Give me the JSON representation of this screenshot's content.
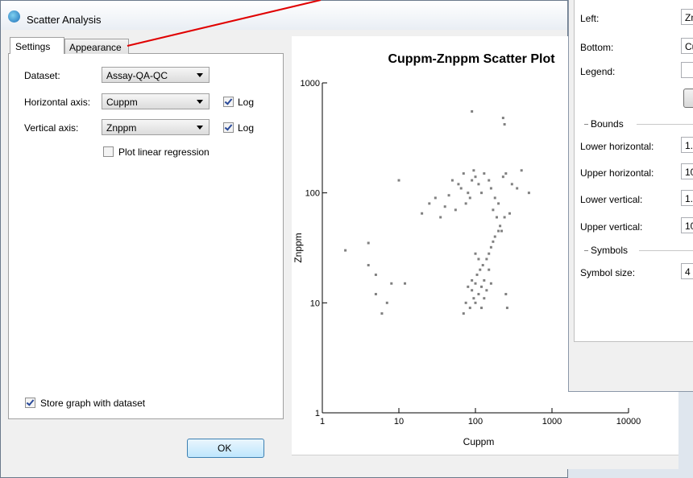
{
  "window": {
    "title": "Scatter Analysis"
  },
  "tabs": [
    "Settings",
    "Appearance"
  ],
  "settings": {
    "dataset": {
      "label": "Dataset:",
      "value": "Assay-QA-QC"
    },
    "horizontal_axis": {
      "label": "Horizontal axis:",
      "value": "Cuppm",
      "log_label": "Log",
      "log": true
    },
    "vertical_axis": {
      "label": "Vertical axis:",
      "value": "Znppm",
      "log_label": "Log",
      "log": true
    },
    "regression": {
      "label": "Plot linear regression",
      "checked": false
    },
    "store": {
      "label": "Store graph with dataset",
      "checked": true
    },
    "ok": "OK"
  },
  "appearance_window": {
    "left": {
      "label": "Left:",
      "value": "Zn"
    },
    "bottom": {
      "label": "Bottom:",
      "value": "Cu"
    },
    "legend": {
      "label": "Legend:"
    },
    "bounds": {
      "title": "Bounds",
      "lower_horizontal": {
        "label": "Lower horizontal:",
        "value": "1."
      },
      "upper_horizontal": {
        "label": "Upper horizontal:",
        "value": "10"
      },
      "lower_vertical": {
        "label": "Lower vertical:",
        "value": "1."
      },
      "upper_vertical": {
        "label": "Upper vertical:",
        "value": "10"
      }
    },
    "symbols": {
      "title": "Symbols",
      "size": {
        "label": "Symbol size:",
        "value": "4"
      }
    }
  },
  "chart_data": {
    "type": "scatter",
    "title": "Cuppm-Znppm Scatter Plot",
    "x_label": "Cuppm",
    "y_label": "Znppm",
    "log_x": true,
    "log_y": true,
    "color": "#808080",
    "xlim": [
      1,
      10000
    ],
    "ylim": [
      1,
      1000
    ],
    "xticks": [
      1,
      10,
      100,
      1000,
      10000
    ],
    "yticks": [
      1,
      10,
      100,
      1000
    ],
    "x": [
      60,
      70,
      80,
      90,
      95,
      100,
      110,
      120,
      130,
      85,
      75,
      65,
      55,
      45,
      40,
      35,
      50,
      150,
      160,
      180,
      200,
      170,
      190,
      210,
      220,
      230,
      250,
      300,
      350,
      400,
      500,
      280,
      240,
      30,
      25,
      90,
      230,
      240,
      2,
      4,
      4,
      5,
      5,
      7,
      6,
      8,
      10,
      12,
      20,
      100,
      110,
      120,
      130,
      105,
      115,
      125,
      140,
      150,
      160,
      170,
      95,
      90,
      85,
      100,
      130,
      140,
      120,
      150,
      180,
      200,
      110,
      100,
      90,
      80,
      75,
      250,
      260,
      70,
      160
    ],
    "y": [
      120,
      150,
      100,
      130,
      160,
      140,
      120,
      100,
      150,
      90,
      80,
      110,
      70,
      95,
      75,
      60,
      130,
      130,
      110,
      90,
      80,
      70,
      60,
      50,
      45,
      140,
      150,
      120,
      110,
      160,
      100,
      65,
      60,
      90,
      80,
      550,
      480,
      420,
      30,
      35,
      22,
      12,
      18,
      10,
      8,
      15,
      130,
      15,
      65,
      10,
      12,
      14,
      16,
      18,
      20,
      22,
      25,
      28,
      32,
      36,
      11,
      13,
      9,
      15,
      11,
      13,
      9,
      20,
      40,
      45,
      25,
      28,
      16,
      14,
      10,
      12,
      9,
      8,
      15
    ]
  }
}
